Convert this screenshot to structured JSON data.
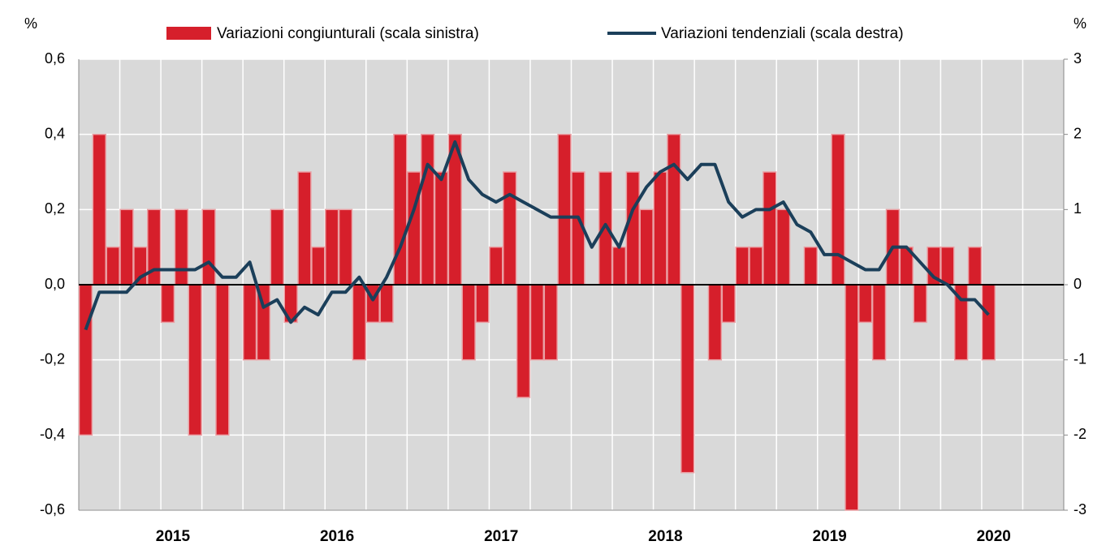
{
  "chart_data": {
    "type": "bar+line",
    "y_unit": "%",
    "y2_unit": "%",
    "categories": [
      null,
      null,
      null,
      null,
      null,
      null,
      null,
      "2015",
      null,
      null,
      null,
      null,
      null,
      null,
      null,
      null,
      null,
      null,
      null,
      "2016",
      null,
      null,
      null,
      null,
      null,
      null,
      null,
      null,
      null,
      null,
      null,
      "2017",
      null,
      null,
      null,
      null,
      null,
      null,
      null,
      null,
      null,
      null,
      null,
      "2018",
      null,
      null,
      null,
      null,
      null,
      null,
      null,
      null,
      null,
      null,
      null,
      "2019",
      null,
      null,
      null,
      null,
      null,
      null,
      null,
      null,
      null,
      null,
      null,
      "2020",
      null,
      null,
      null,
      null
    ],
    "series": [
      {
        "name": "Variazioni congiunturali (scala sinistra)",
        "type": "bar",
        "color": "#d61f2b",
        "axis": "y",
        "values": [
          -0.4,
          0.4,
          0.1,
          0.2,
          0.1,
          0.2,
          -0.1,
          0.2,
          -0.4,
          0.2,
          -0.4,
          0,
          -0.2,
          -0.2,
          0.2,
          -0.1,
          0.3,
          0.1,
          0.2,
          0.2,
          -0.2,
          -0.1,
          -0.1,
          0.4,
          0.3,
          0.4,
          0.3,
          0.4,
          -0.2,
          -0.1,
          0.1,
          0.3,
          -0.3,
          -0.2,
          -0.2,
          0.4,
          0.3,
          0,
          0.3,
          0.1,
          0.3,
          0.2,
          0.3,
          0.4,
          -0.5,
          0,
          -0.2,
          -0.1,
          0.1,
          0.1,
          0.3,
          0.2,
          0,
          0.1,
          0,
          0.4,
          -0.6,
          -0.1,
          -0.2,
          0.2,
          0.1,
          -0.1,
          0.1,
          0.1,
          -0.2,
          0.1,
          -0.2,
          null,
          null,
          null,
          null,
          null
        ]
      },
      {
        "name": "Variazioni tendenziali (scala destra)",
        "type": "line",
        "color": "#1b3f5a",
        "axis": "y2",
        "values": [
          -0.6,
          -0.1,
          -0.1,
          -0.1,
          0.1,
          0.2,
          0.2,
          0.2,
          0.2,
          0.3,
          0.1,
          0.1,
          0.3,
          -0.3,
          -0.2,
          -0.5,
          -0.3,
          -0.4,
          -0.1,
          -0.1,
          0.1,
          -0.2,
          0.1,
          0.5,
          1.0,
          1.6,
          1.4,
          1.9,
          1.4,
          1.2,
          1.1,
          1.2,
          1.1,
          1.0,
          0.9,
          0.9,
          0.9,
          0.5,
          0.8,
          0.5,
          1.0,
          1.3,
          1.5,
          1.6,
          1.4,
          1.6,
          1.6,
          1.1,
          0.9,
          1.0,
          1.0,
          1.1,
          0.8,
          0.7,
          0.4,
          0.4,
          0.3,
          0.2,
          0.2,
          0.5,
          0.5,
          0.3,
          0.1,
          0.0,
          -0.2,
          -0.2,
          -0.4,
          null,
          null,
          null,
          null,
          null
        ]
      }
    ],
    "ylim": [
      -0.6,
      0.6
    ],
    "yticks": [
      {
        "value": -0.6,
        "label": "-0,6"
      },
      {
        "value": -0.4,
        "label": "-0,4"
      },
      {
        "value": -0.2,
        "label": "-0,2"
      },
      {
        "value": 0,
        "label": "0,0"
      },
      {
        "value": 0.2,
        "label": "0,2"
      },
      {
        "value": 0.4,
        "label": "0,4"
      },
      {
        "value": 0.6,
        "label": "0,6"
      }
    ],
    "y2lim": [
      -3,
      3
    ],
    "y2ticks": [
      -3,
      -2,
      -1,
      0,
      1,
      2,
      3
    ],
    "grid": true,
    "legend": "top"
  }
}
